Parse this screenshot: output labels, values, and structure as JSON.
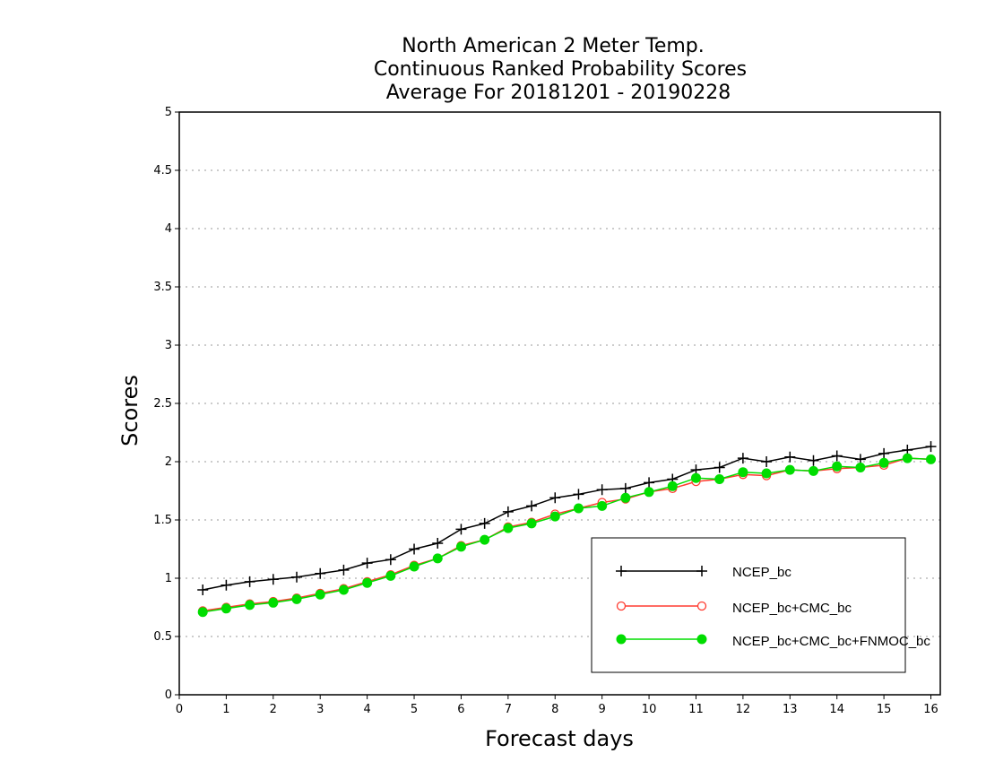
{
  "chart_data": {
    "type": "line",
    "title": [
      "North American 2 Meter Temp.",
      "Continuous Ranked Probability Scores",
      "Average For 20181201 - 20190228"
    ],
    "xlabel": "Forecast days",
    "ylabel": "Scores",
    "xlim": [
      0,
      16.2
    ],
    "ylim": [
      0,
      5
    ],
    "xticks": [
      "0",
      "1",
      "2",
      "3",
      "4",
      "5",
      "6",
      "7",
      "8",
      "9",
      "10",
      "11",
      "12",
      "13",
      "14",
      "15",
      "16"
    ],
    "yticks": [
      "0",
      "0.5",
      "1",
      "1.5",
      "2",
      "2.5",
      "3",
      "3.5",
      "4",
      "4.5",
      "5"
    ],
    "grid": "horizontal dotted",
    "legend_position": "lower-right",
    "x": [
      0.5,
      1,
      1.5,
      2,
      2.5,
      3,
      3.5,
      4,
      4.5,
      5,
      5.5,
      6,
      6.5,
      7,
      7.5,
      8,
      8.5,
      9,
      9.5,
      10,
      10.5,
      11,
      11.5,
      12,
      12.5,
      13,
      13.5,
      14,
      14.5,
      15,
      15.5,
      16
    ],
    "series": [
      {
        "name": "NCEP_bc",
        "color": "#000000",
        "marker": "plus",
        "values": [
          0.9,
          0.94,
          0.97,
          0.99,
          1.01,
          1.04,
          1.07,
          1.13,
          1.16,
          1.25,
          1.3,
          1.42,
          1.47,
          1.57,
          1.62,
          1.69,
          1.72,
          1.76,
          1.77,
          1.82,
          1.85,
          1.93,
          1.95,
          2.03,
          2.0,
          2.04,
          2.01,
          2.05,
          2.02,
          2.07,
          2.1,
          2.13
        ]
      },
      {
        "name": "NCEP_bc+CMC_bc",
        "color": "#ff3b30",
        "marker": "open-circle",
        "values": [
          0.72,
          0.75,
          0.78,
          0.8,
          0.83,
          0.87,
          0.91,
          0.97,
          1.03,
          1.11,
          1.17,
          1.28,
          1.33,
          1.44,
          1.48,
          1.55,
          1.6,
          1.65,
          1.68,
          1.74,
          1.77,
          1.83,
          1.85,
          1.89,
          1.88,
          1.93,
          1.92,
          1.94,
          1.95,
          1.97,
          2.03,
          2.02
        ]
      },
      {
        "name": "NCEP_bc+CMC_bc+FNMOC_bc",
        "color": "#00dd00",
        "marker": "filled-circle",
        "values": [
          0.71,
          0.74,
          0.77,
          0.79,
          0.82,
          0.86,
          0.9,
          0.96,
          1.02,
          1.1,
          1.17,
          1.27,
          1.33,
          1.43,
          1.47,
          1.53,
          1.6,
          1.62,
          1.69,
          1.74,
          1.79,
          1.86,
          1.85,
          1.91,
          1.9,
          1.93,
          1.92,
          1.96,
          1.95,
          1.99,
          2.03,
          2.02
        ]
      }
    ]
  }
}
